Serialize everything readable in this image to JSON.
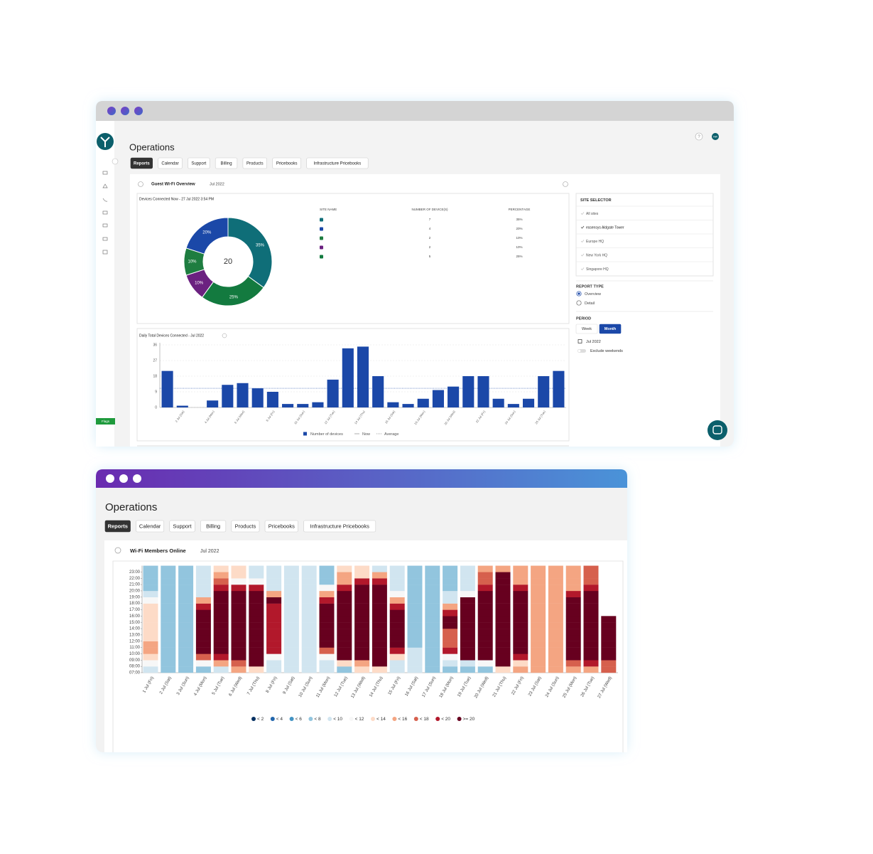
{
  "window1": {
    "title": "Operations",
    "tabs": [
      "Reports",
      "Calendar",
      "Support",
      "Billing",
      "Products",
      "Pricebooks",
      "Infrastructure Pricebooks"
    ],
    "active_tab": 0,
    "report_title": "Guest Wi-Fi Overview",
    "period_label": "Jul 2022",
    "avatar": "NW",
    "flags": "Flags",
    "site_table": {
      "columns": [
        "SITE NAME",
        "NUMBER OF DEVICE(S)",
        "PERCENTAGE"
      ],
      "rows": [
        {
          "color": "#0f6e78",
          "devices": 7,
          "percentage": "35%"
        },
        {
          "color": "#1b48a8",
          "devices": 4,
          "percentage": "20%"
        },
        {
          "color": "#1e7d40",
          "devices": 2,
          "percentage": "10%"
        },
        {
          "color": "#6b2180",
          "devices": 2,
          "percentage": "10%"
        },
        {
          "color": "#137a3f",
          "devices": 5,
          "percentage": "25%"
        }
      ]
    },
    "site_selector": {
      "title": "SITE SELECTOR",
      "sites": [
        "All sites",
        "essensys Aldgate Tower",
        "Europe HQ",
        "New York HQ",
        "Singapore HQ"
      ],
      "selected": 1
    },
    "report_type": {
      "title": "REPORT TYPE",
      "options": [
        "Overview",
        "Detail"
      ],
      "selected": 0
    },
    "period": {
      "title": "PERIOD",
      "options": [
        "Week",
        "Month"
      ],
      "selected": 1,
      "month": "Jul 2022",
      "exclude_weekends": "Exclude weekends"
    }
  },
  "window2": {
    "title": "Operations",
    "tabs": [
      "Reports",
      "Calendar",
      "Support",
      "Billing",
      "Products",
      "Pricebooks",
      "Infrastructure Pricebooks"
    ],
    "active_tab": 0,
    "report_title": "Wi-Fi Members Online",
    "period_label": "Jul 2022"
  },
  "chart_data": [
    {
      "type": "pie",
      "title": "Devices Connected Now - 27 Jul 2022 3:54 PM",
      "total": 20,
      "values": [
        35,
        25,
        10,
        10,
        20
      ],
      "value_labels": [
        "35%",
        "25%",
        "10%",
        "10%",
        "20%"
      ],
      "colors": [
        "#0f6e78",
        "#137a3f",
        "#6b2180",
        "#1e7d40",
        "#1b48a8"
      ]
    },
    {
      "type": "bar",
      "title": "Daily Total Devices Connected - Jul 2022",
      "categories": [
        null,
        "2 Jul (Sat)",
        null,
        "4 Jul (Mon)",
        null,
        "6 Jul (Wed)",
        null,
        "8 Jul (Fri)",
        null,
        "10 Jul (Sun)",
        null,
        "12 Jul (Tue)",
        null,
        "14 Jul (Thu)",
        null,
        "16 Jul (Sat)",
        null,
        "18 Jul (Mon)",
        null,
        "20 Jul (Wed)",
        null,
        "22 Jul (Fri)",
        null,
        "24 Jul (Sun)",
        null,
        "26 Jul (Tue)",
        null
      ],
      "values": [
        21,
        1,
        0,
        4,
        13,
        14,
        11,
        9,
        2,
        2,
        3,
        16,
        34,
        35,
        18,
        3,
        2,
        5,
        10,
        12,
        18,
        18,
        5,
        2,
        5,
        18,
        21
      ],
      "color": "#1b48a8",
      "ylim": [
        0,
        36
      ],
      "yticks": [
        0,
        9,
        18,
        27,
        36
      ],
      "grid": true,
      "average": 11,
      "legend": [
        "Number of devices",
        "Now",
        "Average"
      ]
    },
    {
      "type": "heatmap",
      "categories": [
        "1 Jul (Fri)",
        "2 Jul (Sat)",
        "3 Jul (Sun)",
        "4 Jul (Mon)",
        "5 Jul (Tue)",
        "6 Jul (Wed)",
        "7 Jul (Thu)",
        "8 Jul (Fri)",
        "9 Jul (Sat)",
        "10 Jul (Sun)",
        "11 Jul (Mon)",
        "12 Jul (Tue)",
        "13 Jul (Wed)",
        "14 Jul (Thu)",
        "15 Jul (Fri)",
        "16 Jul (Sat)",
        "17 Jul (Sun)",
        "18 Jul (Mon)",
        "19 Jul (Tue)",
        "20 Jul (Wed)",
        "21 Jul (Thu)",
        "22 Jul (Fri)",
        "23 Jul (Sat)",
        "24 Jul (Sun)",
        "25 Jul (Mon)",
        "26 Jul (Tue)",
        "27 Jul (Wed)"
      ],
      "y_categories": [
        "07:00",
        "08:00",
        "09:00",
        "10:00",
        "11:00",
        "12:00",
        "13:00",
        "14:00",
        "15:00",
        "16:00",
        "17:00",
        "18:00",
        "19:00",
        "20:00",
        "21:00",
        "22:00",
        "23:00"
      ],
      "values": [
        [
          9,
          11,
          13,
          15,
          15,
          13,
          13,
          13,
          13,
          13,
          13,
          11,
          9,
          7,
          7,
          7,
          7
        ],
        [
          7,
          7,
          7,
          7,
          7,
          7,
          7,
          7,
          7,
          7,
          7,
          7,
          7,
          7,
          7,
          7,
          7
        ],
        [
          7,
          7,
          7,
          7,
          7,
          7,
          7,
          7,
          7,
          7,
          7,
          7,
          7,
          7,
          7,
          7,
          7
        ],
        [
          7,
          11,
          17,
          25,
          25,
          25,
          25,
          25,
          25,
          25,
          19,
          15,
          9,
          9,
          9,
          9,
          9
        ],
        [
          9,
          15,
          19,
          25,
          25,
          25,
          25,
          25,
          25,
          25,
          25,
          25,
          25,
          19,
          17,
          15,
          13
        ],
        [
          15,
          17,
          25,
          25,
          25,
          25,
          25,
          25,
          25,
          25,
          25,
          25,
          25,
          19,
          11,
          13,
          13
        ],
        [
          13,
          25,
          25,
          25,
          25,
          25,
          25,
          25,
          25,
          25,
          25,
          25,
          25,
          19,
          11,
          9,
          9
        ],
        [
          9,
          9,
          11,
          19,
          19,
          19,
          19,
          19,
          19,
          19,
          19,
          25,
          15,
          9,
          9,
          9,
          9
        ],
        [
          9,
          9,
          9,
          9,
          9,
          9,
          9,
          9,
          9,
          9,
          9,
          9,
          9,
          9,
          9,
          9,
          9
        ],
        [
          9,
          9,
          9,
          9,
          9,
          9,
          9,
          9,
          9,
          9,
          9,
          9,
          9,
          9,
          9,
          9,
          9
        ],
        [
          9,
          9,
          11,
          17,
          25,
          25,
          25,
          25,
          25,
          25,
          25,
          19,
          15,
          11,
          7,
          7,
          7
        ],
        [
          7,
          13,
          25,
          25,
          25,
          25,
          25,
          25,
          25,
          25,
          25,
          25,
          25,
          19,
          15,
          15,
          13
        ],
        [
          13,
          15,
          25,
          25,
          25,
          25,
          25,
          25,
          25,
          25,
          25,
          25,
          25,
          25,
          19,
          13,
          13
        ],
        [
          13,
          25,
          25,
          25,
          25,
          25,
          25,
          25,
          25,
          25,
          25,
          25,
          25,
          25,
          19,
          15,
          9
        ],
        [
          9,
          9,
          13,
          19,
          25,
          25,
          25,
          25,
          25,
          25,
          19,
          15,
          11,
          9,
          9,
          9,
          9
        ],
        [
          9,
          9,
          9,
          9,
          7,
          7,
          7,
          7,
          7,
          7,
          7,
          7,
          7,
          7,
          7,
          7,
          7
        ],
        [
          7,
          7,
          7,
          7,
          7,
          7,
          7,
          7,
          7,
          7,
          7,
          7,
          7,
          7,
          7,
          7,
          7
        ],
        [
          7,
          9,
          11,
          19,
          17,
          17,
          17,
          25,
          25,
          19,
          15,
          9,
          9,
          7,
          7,
          7,
          7
        ],
        [
          7,
          9,
          25,
          25,
          25,
          25,
          25,
          25,
          25,
          25,
          25,
          25,
          11,
          9,
          9,
          9,
          9
        ],
        [
          7,
          11,
          25,
          25,
          25,
          25,
          25,
          25,
          25,
          25,
          25,
          25,
          25,
          19,
          17,
          17,
          15
        ],
        [
          13,
          25,
          25,
          25,
          25,
          25,
          25,
          25,
          25,
          25,
          25,
          25,
          25,
          25,
          25,
          25,
          15
        ],
        [
          15,
          13,
          19,
          25,
          25,
          25,
          25,
          25,
          25,
          25,
          25,
          25,
          25,
          19,
          15,
          15,
          15
        ],
        [
          15,
          15,
          15,
          15,
          15,
          15,
          15,
          15,
          15,
          15,
          15,
          15,
          15,
          15,
          15,
          15,
          15
        ],
        [
          15,
          15,
          15,
          15,
          15,
          15,
          15,
          15,
          15,
          15,
          15,
          15,
          15,
          15,
          15,
          15,
          15
        ],
        [
          15,
          17,
          25,
          25,
          25,
          25,
          25,
          25,
          25,
          25,
          25,
          25,
          19,
          15,
          15,
          15,
          15
        ],
        [
          15,
          19,
          25,
          25,
          25,
          25,
          25,
          25,
          25,
          25,
          25,
          25,
          25,
          19,
          17,
          17,
          17
        ],
        [
          17,
          17,
          25,
          25,
          25,
          25,
          25,
          25,
          25,
          null,
          null,
          null,
          null,
          null,
          null,
          null,
          null
        ]
      ],
      "color_scale": [
        {
          "value": 2,
          "label": "< 2",
          "color": "#053061"
        },
        {
          "value": 4,
          "label": "< 4",
          "color": "#2166ac"
        },
        {
          "value": 6,
          "label": "< 6",
          "color": "#4393c3"
        },
        {
          "value": 8,
          "label": "< 8",
          "color": "#92c5de"
        },
        {
          "value": 10,
          "label": "< 10",
          "color": "#d1e5f0"
        },
        {
          "value": 12,
          "label": "< 12",
          "color": "#f7f7f7"
        },
        {
          "value": 14,
          "label": "< 14",
          "color": "#fddbc7"
        },
        {
          "value": 16,
          "label": "< 16",
          "color": "#f4a582"
        },
        {
          "value": 18,
          "label": "< 18",
          "color": "#d6604d"
        },
        {
          "value": 20,
          "label": "< 20",
          "color": "#b2182b"
        },
        {
          "value": 20,
          "label": ">= 20",
          "color": "#67001f"
        }
      ]
    }
  ]
}
